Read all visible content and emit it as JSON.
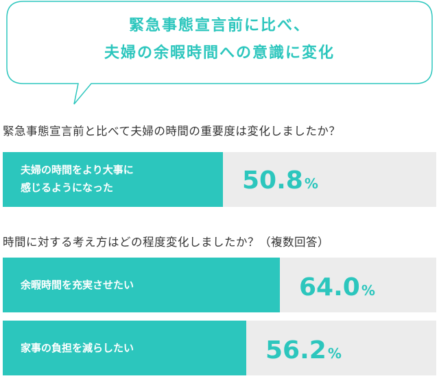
{
  "header": {
    "title_line1": "緊急事態宣言前に比べ、",
    "title_line2": "夫婦の余暇時間への意識に変化"
  },
  "q1": {
    "question": "緊急事態宣言前と比べて夫婦の時間の重要度は変化しましたか？",
    "label_line1": "夫婦の時間をより大事に",
    "label_line2": "感じるようになった",
    "value_num": "50.8",
    "value_unit": "%"
  },
  "q2": {
    "question": "時間に対する考え方はどの程度変化しましたか？（複数回答）",
    "items": [
      {
        "label": "余暇時間を充実させたい",
        "value_num": "64.0",
        "value_unit": "%"
      },
      {
        "label": "家事の負担を減らしたい",
        "value_num": "56.2",
        "value_unit": "%"
      }
    ]
  },
  "chart_data": [
    {
      "type": "bar",
      "title": "緊急事態宣言前と比べて夫婦の時間の重要度は変化しましたか？",
      "categories": [
        "夫婦の時間をより大事に感じるようになった"
      ],
      "values": [
        50.8
      ],
      "unit": "%",
      "ylim": [
        0,
        100
      ]
    },
    {
      "type": "bar",
      "title": "時間に対する考え方はどの程度変化しましたか？（複数回答）",
      "categories": [
        "余暇時間を充実させたい",
        "家事の負担を減らしたい"
      ],
      "values": [
        64.0,
        56.2
      ],
      "unit": "%",
      "ylim": [
        0,
        100
      ]
    }
  ],
  "colors": {
    "accent": "#2cc6bd",
    "track": "#ececec",
    "text": "#333333"
  }
}
